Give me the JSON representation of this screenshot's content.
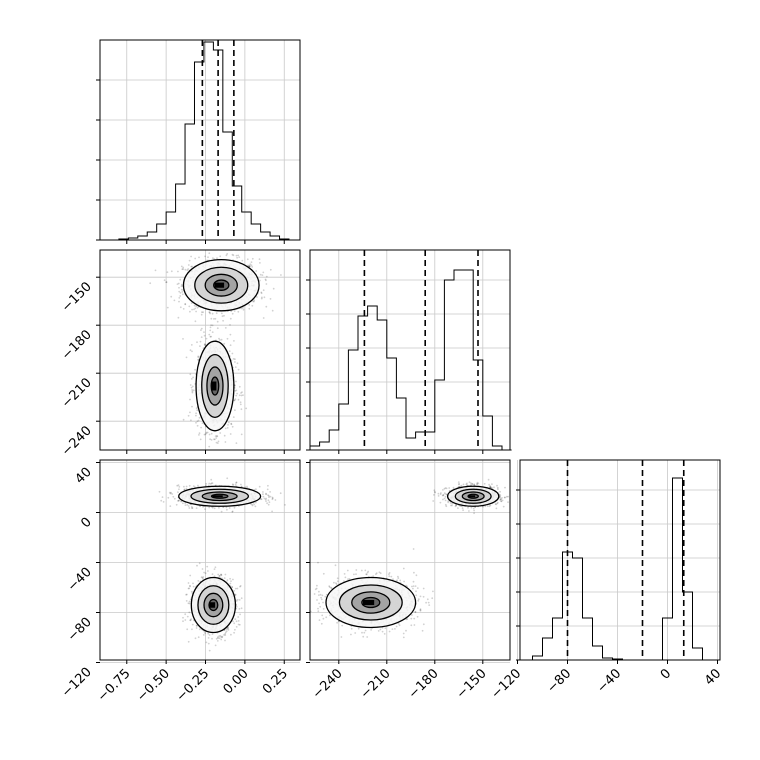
{
  "chart_data": [
    {
      "type": "histogram",
      "panel": "1D marginal, parameter 1",
      "x_ticks": [
        "−0.75",
        "−0.50",
        "−0.25",
        "0.00",
        "0.25"
      ],
      "x_tick_values": [
        -0.75,
        -0.5,
        -0.25,
        0.0,
        0.25
      ],
      "xlim": [
        -0.92,
        0.35
      ],
      "bin_edges": [
        -0.92,
        -0.86,
        -0.8,
        -0.74,
        -0.68,
        -0.62,
        -0.56,
        -0.5,
        -0.44,
        -0.38,
        -0.32,
        -0.26,
        -0.2,
        -0.14,
        -0.08,
        -0.02,
        0.04,
        0.1,
        0.16,
        0.22,
        0.28,
        0.34
      ],
      "counts": [
        0.0,
        0.0,
        0.005,
        0.01,
        0.02,
        0.04,
        0.08,
        0.14,
        0.28,
        0.58,
        0.89,
        0.99,
        0.95,
        0.54,
        0.27,
        0.14,
        0.08,
        0.04,
        0.02,
        0.005,
        0.0
      ],
      "quantile_lines": [
        -0.27,
        -0.17,
        -0.07
      ]
    },
    {
      "type": "histogram",
      "panel": "1D marginal, parameter 2",
      "x_ticks": [
        "−240",
        "−210",
        "−180",
        "−150"
      ],
      "x_tick_values": [
        -240,
        -210,
        -180,
        -150
      ],
      "xlim": [
        -258,
        -133
      ],
      "bin_edges": [
        -258,
        -252,
        -246,
        -240,
        -234,
        -228,
        -222,
        -216,
        -210,
        -204,
        -198,
        -192,
        -186,
        -180,
        -174,
        -168,
        -162,
        -156,
        -150,
        -144,
        -138,
        -132
      ],
      "counts": [
        0.02,
        0.04,
        0.1,
        0.23,
        0.5,
        0.67,
        0.72,
        0.65,
        0.46,
        0.26,
        0.06,
        0.09,
        0.09,
        0.35,
        0.85,
        0.9,
        0.9,
        0.45,
        0.17,
        0.02,
        0.0
      ],
      "quantile_lines": [
        -224,
        -186,
        -153
      ]
    },
    {
      "type": "histogram",
      "panel": "1D marginal, parameter 3",
      "x_ticks": [
        "−120",
        "−80",
        "−40",
        "0",
        "40"
      ],
      "x_tick_values": [
        -120,
        -80,
        -40,
        0,
        40
      ],
      "xlim": [
        -118,
        42
      ],
      "bin_edges": [
        -118,
        -108,
        -100,
        -92,
        -84,
        -76,
        -68,
        -60,
        -52,
        -44,
        -36,
        -28,
        -20,
        -12,
        -4,
        4,
        12,
        20,
        28,
        36
      ],
      "counts": [
        0.0,
        0.02,
        0.11,
        0.21,
        0.54,
        0.51,
        0.21,
        0.07,
        0.01,
        0.005,
        0.0,
        0.0,
        0.0,
        0.0,
        0.21,
        0.91,
        0.34,
        0.06,
        0.0
      ],
      "quantile_lines": [
        -80,
        -20,
        13
      ]
    },
    {
      "type": "scatter",
      "panel": "2D, parameter 2 vs parameter 1",
      "xlim": [
        -0.92,
        0.35
      ],
      "ylim": [
        -258,
        -133
      ],
      "y_ticks": [
        "−150",
        "−180",
        "−210",
        "−240"
      ],
      "y_tick_values": [
        -150,
        -180,
        -210,
        -240
      ],
      "clusters": [
        {
          "center": [
            -0.15,
            -155
          ],
          "spread": [
            0.12,
            8
          ]
        },
        {
          "center": [
            -0.19,
            -218
          ],
          "spread": [
            0.06,
            14
          ]
        }
      ]
    },
    {
      "type": "scatter",
      "panel": "2D, parameter 3 vs parameter 1",
      "xlim": [
        -0.92,
        0.35
      ],
      "ylim": [
        -118,
        42
      ],
      "y_ticks": [
        "40",
        "0",
        "−40",
        "−80",
        "−120"
      ],
      "y_tick_values": [
        40,
        0,
        -40,
        -80,
        -120
      ],
      "clusters": [
        {
          "center": [
            -0.16,
            13
          ],
          "spread": [
            0.13,
            4
          ]
        },
        {
          "center": [
            -0.2,
            -74
          ],
          "spread": [
            0.07,
            11
          ]
        }
      ]
    },
    {
      "type": "scatter",
      "panel": "2D, parameter 3 vs parameter 2",
      "xlim": [
        -258,
        -133
      ],
      "ylim": [
        -118,
        42
      ],
      "clusters": [
        {
          "center": [
            -156,
            13
          ],
          "spread": [
            8,
            4
          ]
        },
        {
          "center": [
            -220,
            -72
          ],
          "spread": [
            14,
            10
          ]
        }
      ]
    }
  ]
}
